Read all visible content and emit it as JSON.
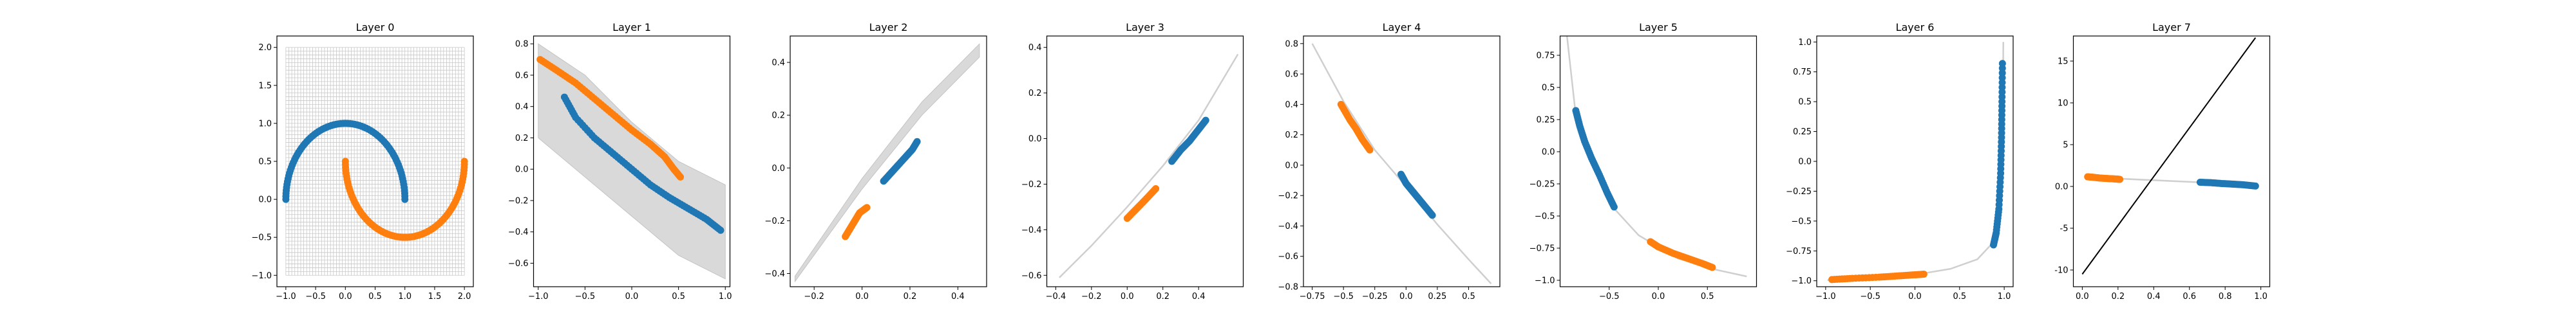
{
  "colors": {
    "blue": "#1f77b4",
    "orange": "#ff7f0e",
    "grid": "#c8c8c8",
    "axis": "#000000"
  },
  "chart_data": [
    {
      "type": "scatter",
      "title": "Layer 0",
      "xlim": [
        -1.15,
        2.15
      ],
      "ylim": [
        -1.15,
        2.15
      ],
      "xticks": [
        -1.0,
        -0.5,
        0.0,
        0.5,
        1.0,
        1.5,
        2.0
      ],
      "yticks": [
        -1.0,
        -0.5,
        0.0,
        0.5,
        1.0,
        1.5,
        2.0
      ],
      "background_grid": {
        "x_range": [
          -1.0,
          2.0
        ],
        "y_range": [
          -1.0,
          2.0
        ],
        "spacing": 0.05
      },
      "series": [
        {
          "color": "blue",
          "curve": "moon_upper"
        },
        {
          "color": "orange",
          "curve": "moon_lower"
        }
      ]
    },
    {
      "type": "scatter",
      "title": "Layer 1",
      "xlim": [
        -1.05,
        1.05
      ],
      "ylim": [
        -0.75,
        0.85
      ],
      "xticks": [
        -1.0,
        -0.5,
        0.0,
        0.5,
        1.0
      ],
      "yticks": [
        -0.6,
        -0.4,
        -0.2,
        0.0,
        0.2,
        0.4,
        0.6,
        0.8
      ],
      "background_band": {
        "upper": [
          [
            -1.0,
            0.8
          ],
          [
            -0.5,
            0.6
          ],
          [
            0.0,
            0.3
          ],
          [
            0.5,
            0.05
          ],
          [
            1.0,
            -0.1
          ]
        ],
        "lower": [
          [
            -1.0,
            0.2
          ],
          [
            -0.5,
            -0.05
          ],
          [
            0.0,
            -0.3
          ],
          [
            0.5,
            -0.55
          ],
          [
            1.0,
            -0.7
          ]
        ]
      },
      "series": [
        {
          "color": "orange",
          "points": [
            [
              -0.98,
              0.7
            ],
            [
              -0.8,
              0.63
            ],
            [
              -0.6,
              0.55
            ],
            [
              -0.4,
              0.45
            ],
            [
              -0.2,
              0.35
            ],
            [
              0.0,
              0.25
            ],
            [
              0.2,
              0.16
            ],
            [
              0.35,
              0.08
            ],
            [
              0.45,
              0.0
            ],
            [
              0.52,
              -0.05
            ]
          ]
        },
        {
          "color": "blue",
          "points": [
            [
              -0.72,
              0.46
            ],
            [
              -0.6,
              0.33
            ],
            [
              -0.4,
              0.2
            ],
            [
              -0.2,
              0.1
            ],
            [
              0.0,
              0.0
            ],
            [
              0.2,
              -0.1
            ],
            [
              0.4,
              -0.18
            ],
            [
              0.6,
              -0.25
            ],
            [
              0.8,
              -0.32
            ],
            [
              0.95,
              -0.39
            ]
          ]
        }
      ]
    },
    {
      "type": "scatter",
      "title": "Layer 2",
      "xlim": [
        -0.3,
        0.52
      ],
      "ylim": [
        -0.45,
        0.5
      ],
      "xticks": [
        -0.2,
        0.0,
        0.2,
        0.4
      ],
      "yticks": [
        -0.4,
        -0.2,
        0.0,
        0.2,
        0.4
      ],
      "background_band": {
        "upper": [
          [
            -0.28,
            -0.41
          ],
          [
            0.0,
            -0.04
          ],
          [
            0.25,
            0.25
          ],
          [
            0.49,
            0.47
          ]
        ],
        "lower": [
          [
            -0.28,
            -0.43
          ],
          [
            0.0,
            -0.08
          ],
          [
            0.25,
            0.2
          ],
          [
            0.49,
            0.42
          ]
        ]
      },
      "series": [
        {
          "color": "orange",
          "points": [
            [
              -0.07,
              -0.26
            ],
            [
              -0.05,
              -0.23
            ],
            [
              -0.03,
              -0.2
            ],
            [
              -0.01,
              -0.17
            ],
            [
              0.02,
              -0.15
            ]
          ]
        },
        {
          "color": "blue",
          "points": [
            [
              0.09,
              -0.05
            ],
            [
              0.12,
              -0.02
            ],
            [
              0.15,
              0.01
            ],
            [
              0.18,
              0.04
            ],
            [
              0.21,
              0.07
            ],
            [
              0.23,
              0.1
            ]
          ]
        }
      ]
    },
    {
      "type": "scatter",
      "title": "Layer 3",
      "xlim": [
        -0.45,
        0.65
      ],
      "ylim": [
        -0.65,
        0.45
      ],
      "xticks": [
        -0.4,
        -0.2,
        0.0,
        0.2,
        0.4
      ],
      "yticks": [
        -0.6,
        -0.4,
        -0.2,
        0.0,
        0.2,
        0.4
      ],
      "background_line": [
        [
          -0.38,
          -0.61
        ],
        [
          -0.2,
          -0.47
        ],
        [
          0.0,
          -0.3
        ],
        [
          0.2,
          -0.12
        ],
        [
          0.4,
          0.08
        ],
        [
          0.62,
          0.37
        ]
      ],
      "series": [
        {
          "color": "orange",
          "points": [
            [
              0.0,
              -0.35
            ],
            [
              0.05,
              -0.31
            ],
            [
              0.1,
              -0.27
            ],
            [
              0.16,
              -0.22
            ]
          ]
        },
        {
          "color": "blue",
          "points": [
            [
              0.25,
              -0.1
            ],
            [
              0.3,
              -0.05
            ],
            [
              0.35,
              -0.01
            ],
            [
              0.4,
              0.04
            ],
            [
              0.44,
              0.08
            ]
          ]
        }
      ]
    },
    {
      "type": "scatter",
      "title": "Layer 4",
      "xlim": [
        -0.82,
        0.75
      ],
      "ylim": [
        -0.8,
        0.85
      ],
      "xticks": [
        -0.75,
        -0.5,
        -0.25,
        0.0,
        0.25,
        0.5
      ],
      "yticks": [
        -0.8,
        -0.6,
        -0.4,
        -0.2,
        0.0,
        0.2,
        0.4,
        0.6,
        0.8
      ],
      "background_line": [
        [
          -0.75,
          0.8
        ],
        [
          -0.5,
          0.42
        ],
        [
          -0.25,
          0.1
        ],
        [
          0.0,
          -0.14
        ],
        [
          0.25,
          -0.39
        ],
        [
          0.5,
          -0.62
        ],
        [
          0.68,
          -0.78
        ]
      ],
      "series": [
        {
          "color": "orange",
          "points": [
            [
              -0.52,
              0.4
            ],
            [
              -0.45,
              0.3
            ],
            [
              -0.4,
              0.24
            ],
            [
              -0.35,
              0.17
            ],
            [
              -0.29,
              0.1
            ]
          ]
        },
        {
          "color": "blue",
          "points": [
            [
              -0.04,
              -0.06
            ],
            [
              0.0,
              -0.12
            ],
            [
              0.05,
              -0.17
            ],
            [
              0.1,
              -0.22
            ],
            [
              0.15,
              -0.27
            ],
            [
              0.21,
              -0.33
            ]
          ]
        }
      ]
    },
    {
      "type": "scatter",
      "title": "Layer 5",
      "xlim": [
        -1.0,
        1.0
      ],
      "ylim": [
        -1.05,
        0.9
      ],
      "xticks": [
        -0.5,
        0.0,
        0.5
      ],
      "yticks": [
        -1.0,
        -0.75,
        -0.5,
        -0.25,
        0.0,
        0.25,
        0.5,
        0.75
      ],
      "background_line": [
        [
          -0.93,
          0.9
        ],
        [
          -0.85,
          0.35
        ],
        [
          -0.7,
          -0.05
        ],
        [
          -0.5,
          -0.4
        ],
        [
          -0.2,
          -0.65
        ],
        [
          0.2,
          -0.83
        ],
        [
          0.6,
          -0.92
        ],
        [
          0.9,
          -0.97
        ]
      ],
      "series": [
        {
          "color": "blue",
          "points": [
            [
              -0.84,
              0.32
            ],
            [
              -0.8,
              0.2
            ],
            [
              -0.75,
              0.08
            ],
            [
              -0.68,
              -0.05
            ],
            [
              -0.6,
              -0.18
            ],
            [
              -0.52,
              -0.32
            ],
            [
              -0.45,
              -0.43
            ]
          ]
        },
        {
          "color": "orange",
          "points": [
            [
              -0.08,
              -0.7
            ],
            [
              0.0,
              -0.74
            ],
            [
              0.15,
              -0.79
            ],
            [
              0.3,
              -0.83
            ],
            [
              0.45,
              -0.87
            ],
            [
              0.55,
              -0.9
            ]
          ]
        }
      ]
    },
    {
      "type": "scatter",
      "title": "Layer 6",
      "xlim": [
        -1.1,
        1.1
      ],
      "ylim": [
        -1.05,
        1.05
      ],
      "xticks": [
        -1.0,
        -0.5,
        0.0,
        0.5,
        1.0
      ],
      "yticks": [
        -1.0,
        -0.75,
        -0.5,
        -0.25,
        0.0,
        0.25,
        0.5,
        0.75,
        1.0
      ],
      "background_line": [
        [
          -0.98,
          -0.995
        ],
        [
          -0.5,
          -0.975
        ],
        [
          0.0,
          -0.95
        ],
        [
          0.4,
          -0.9
        ],
        [
          0.7,
          -0.82
        ],
        [
          0.85,
          -0.7
        ],
        [
          0.93,
          -0.45
        ],
        [
          0.97,
          0.0
        ],
        [
          0.985,
          0.5
        ],
        [
          0.99,
          1.0
        ]
      ],
      "series": [
        {
          "color": "orange",
          "points": [
            [
              -0.93,
              -0.99
            ],
            [
              -0.7,
              -0.98
            ],
            [
              -0.4,
              -0.97
            ],
            [
              -0.2,
              -0.96
            ],
            [
              0.0,
              -0.95
            ],
            [
              0.1,
              -0.945
            ]
          ]
        },
        {
          "color": "blue",
          "points": [
            [
              0.88,
              -0.7
            ],
            [
              0.91,
              -0.6
            ],
            [
              0.94,
              -0.4
            ],
            [
              0.96,
              -0.1
            ],
            [
              0.97,
              0.2
            ],
            [
              0.975,
              0.5
            ],
            [
              0.98,
              0.82
            ]
          ]
        }
      ]
    },
    {
      "type": "scatter",
      "title": "Layer 7",
      "xlim": [
        -0.05,
        1.05
      ],
      "ylim": [
        -12,
        18
      ],
      "xticks": [
        0.0,
        0.2,
        0.4,
        0.6,
        0.8,
        1.0
      ],
      "yticks": [
        -10,
        -5,
        0,
        5,
        10,
        15
      ],
      "background_line": [
        [
          0.03,
          1.1
        ],
        [
          0.65,
          0.5
        ],
        [
          0.97,
          0.0
        ]
      ],
      "reference_line": [
        [
          0.0,
          -10.5
        ],
        [
          0.97,
          17.8
        ]
      ],
      "series": [
        {
          "color": "orange",
          "points": [
            [
              0.03,
              1.15
            ],
            [
              0.06,
              1.1
            ],
            [
              0.1,
              1.0
            ],
            [
              0.14,
              0.95
            ],
            [
              0.18,
              0.9
            ],
            [
              0.21,
              0.85
            ]
          ]
        },
        {
          "color": "blue",
          "points": [
            [
              0.66,
              0.5
            ],
            [
              0.72,
              0.45
            ],
            [
              0.78,
              0.35
            ],
            [
              0.84,
              0.28
            ],
            [
              0.9,
              0.2
            ],
            [
              0.97,
              0.05
            ]
          ]
        }
      ]
    }
  ]
}
